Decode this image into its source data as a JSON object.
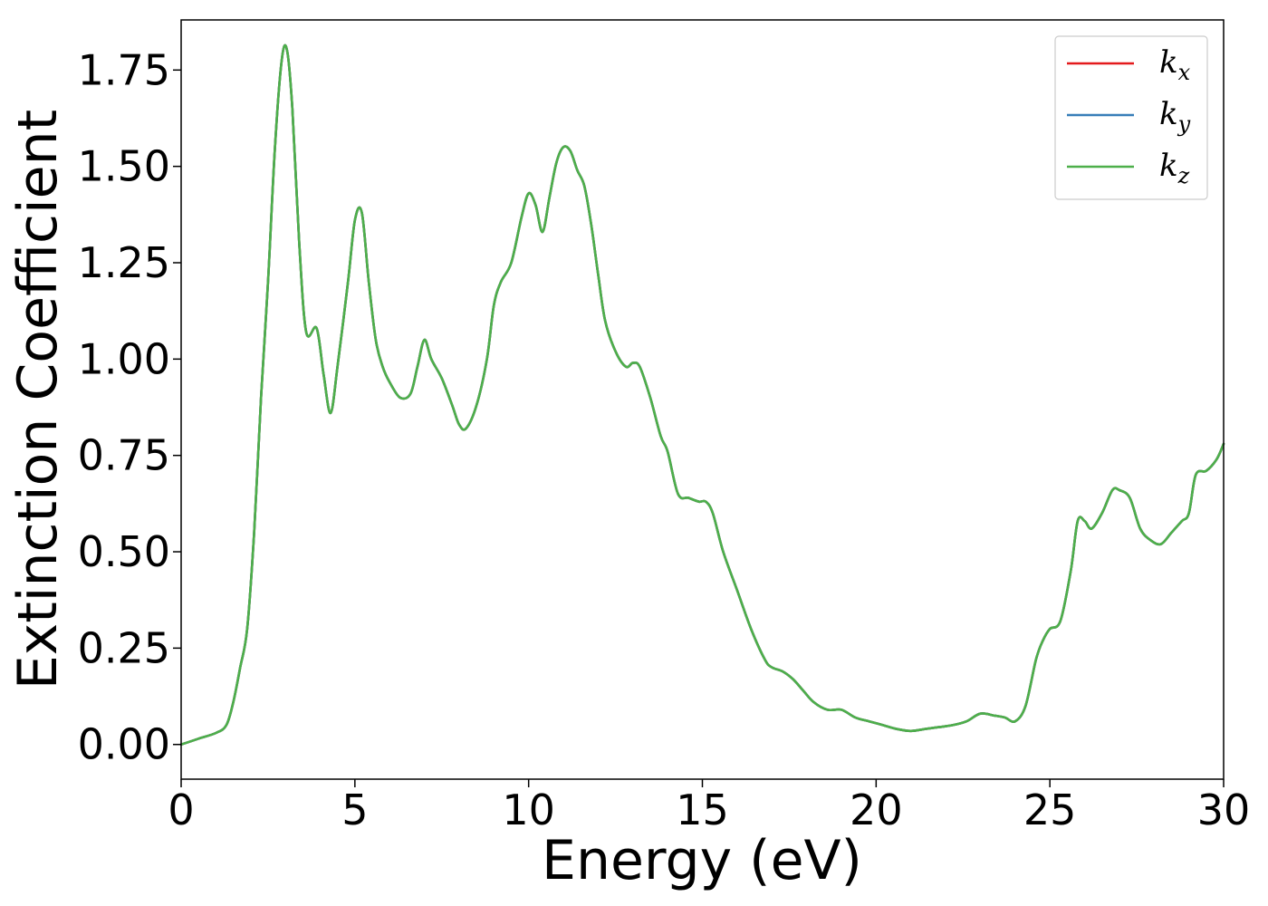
{
  "chart_data": {
    "type": "line",
    "xlabel": "Energy (eV)",
    "ylabel": "Extinction Coefficient",
    "xlim": [
      0,
      30
    ],
    "ylim": [
      -0.09,
      1.88
    ],
    "xticks": [
      0,
      5,
      10,
      15,
      20,
      25,
      30
    ],
    "xtick_labels": [
      "0",
      "5",
      "10",
      "15",
      "20",
      "25",
      "30"
    ],
    "yticks": [
      0,
      0.25,
      0.5,
      0.75,
      1.0,
      1.25,
      1.5,
      1.75
    ],
    "ytick_labels": [
      "0.00",
      "0.25",
      "0.50",
      "0.75",
      "1.00",
      "1.25",
      "1.50",
      "1.75"
    ],
    "grid": false,
    "legend_position": "top-right",
    "x": [
      0,
      0.5,
      1.0,
      1.3,
      1.5,
      1.7,
      1.9,
      2.1,
      2.3,
      2.5,
      2.7,
      2.9,
      3.05,
      3.2,
      3.4,
      3.6,
      3.9,
      4.1,
      4.3,
      4.5,
      4.8,
      5.0,
      5.2,
      5.4,
      5.6,
      5.8,
      6.0,
      6.3,
      6.6,
      6.8,
      7.0,
      7.2,
      7.5,
      7.8,
      8.0,
      8.2,
      8.5,
      8.8,
      9.0,
      9.2,
      9.5,
      9.8,
      10.0,
      10.2,
      10.4,
      10.6,
      10.8,
      11.0,
      11.2,
      11.4,
      11.6,
      11.8,
      12.0,
      12.2,
      12.5,
      12.8,
      13.0,
      13.2,
      13.5,
      13.8,
      14.0,
      14.3,
      14.6,
      14.9,
      15.1,
      15.3,
      15.6,
      16.0,
      16.4,
      16.8,
      17.0,
      17.3,
      17.6,
      17.9,
      18.2,
      18.6,
      19.0,
      19.4,
      19.8,
      20.2,
      20.6,
      21.0,
      21.4,
      21.8,
      22.2,
      22.6,
      23.0,
      23.4,
      23.7,
      24.0,
      24.3,
      24.6,
      24.8,
      25.0,
      25.3,
      25.6,
      25.8,
      26.0,
      26.2,
      26.5,
      26.8,
      27.0,
      27.3,
      27.6,
      27.9,
      28.2,
      28.5,
      28.8,
      29.0,
      29.2,
      29.5,
      29.8,
      30.0
    ],
    "series": [
      {
        "name": "k_x",
        "label_main": "k",
        "label_sub": "x",
        "color": "#e41a1c",
        "values": [
          0.0,
          0.015,
          0.03,
          0.05,
          0.11,
          0.2,
          0.3,
          0.55,
          0.9,
          1.2,
          1.55,
          1.78,
          1.8,
          1.65,
          1.3,
          1.07,
          1.08,
          0.96,
          0.86,
          0.98,
          1.2,
          1.36,
          1.38,
          1.2,
          1.05,
          0.98,
          0.94,
          0.9,
          0.91,
          0.98,
          1.05,
          1.0,
          0.95,
          0.88,
          0.83,
          0.82,
          0.88,
          1.0,
          1.14,
          1.2,
          1.25,
          1.37,
          1.43,
          1.4,
          1.33,
          1.42,
          1.51,
          1.55,
          1.54,
          1.49,
          1.45,
          1.35,
          1.22,
          1.1,
          1.02,
          0.98,
          0.99,
          0.98,
          0.9,
          0.8,
          0.76,
          0.65,
          0.64,
          0.63,
          0.63,
          0.6,
          0.5,
          0.4,
          0.3,
          0.22,
          0.2,
          0.19,
          0.17,
          0.14,
          0.11,
          0.09,
          0.09,
          0.07,
          0.06,
          0.05,
          0.04,
          0.035,
          0.04,
          0.045,
          0.05,
          0.06,
          0.08,
          0.075,
          0.07,
          0.06,
          0.1,
          0.22,
          0.27,
          0.3,
          0.32,
          0.45,
          0.58,
          0.58,
          0.56,
          0.6,
          0.66,
          0.66,
          0.64,
          0.56,
          0.53,
          0.52,
          0.55,
          0.58,
          0.6,
          0.7,
          0.71,
          0.74,
          0.78
        ]
      },
      {
        "name": "k_y",
        "label_main": "k",
        "label_sub": "y",
        "color": "#377eb8",
        "values": [
          0.0,
          0.015,
          0.03,
          0.05,
          0.11,
          0.2,
          0.3,
          0.55,
          0.9,
          1.2,
          1.55,
          1.78,
          1.8,
          1.65,
          1.3,
          1.07,
          1.08,
          0.96,
          0.86,
          0.98,
          1.2,
          1.36,
          1.38,
          1.2,
          1.05,
          0.98,
          0.94,
          0.9,
          0.91,
          0.98,
          1.05,
          1.0,
          0.95,
          0.88,
          0.83,
          0.82,
          0.88,
          1.0,
          1.14,
          1.2,
          1.25,
          1.37,
          1.43,
          1.4,
          1.33,
          1.42,
          1.51,
          1.55,
          1.54,
          1.49,
          1.45,
          1.35,
          1.22,
          1.1,
          1.02,
          0.98,
          0.99,
          0.98,
          0.9,
          0.8,
          0.76,
          0.65,
          0.64,
          0.63,
          0.63,
          0.6,
          0.5,
          0.4,
          0.3,
          0.22,
          0.2,
          0.19,
          0.17,
          0.14,
          0.11,
          0.09,
          0.09,
          0.07,
          0.06,
          0.05,
          0.04,
          0.035,
          0.04,
          0.045,
          0.05,
          0.06,
          0.08,
          0.075,
          0.07,
          0.06,
          0.1,
          0.22,
          0.27,
          0.3,
          0.32,
          0.45,
          0.58,
          0.58,
          0.56,
          0.6,
          0.66,
          0.66,
          0.64,
          0.56,
          0.53,
          0.52,
          0.55,
          0.58,
          0.6,
          0.7,
          0.71,
          0.74,
          0.78
        ]
      },
      {
        "name": "k_z",
        "label_main": "k",
        "label_sub": "z",
        "color": "#4daf4a",
        "values": [
          0.0,
          0.015,
          0.03,
          0.05,
          0.11,
          0.2,
          0.3,
          0.55,
          0.9,
          1.2,
          1.55,
          1.78,
          1.8,
          1.65,
          1.3,
          1.07,
          1.08,
          0.96,
          0.86,
          0.98,
          1.2,
          1.36,
          1.38,
          1.2,
          1.05,
          0.98,
          0.94,
          0.9,
          0.91,
          0.98,
          1.05,
          1.0,
          0.95,
          0.88,
          0.83,
          0.82,
          0.88,
          1.0,
          1.14,
          1.2,
          1.25,
          1.37,
          1.43,
          1.4,
          1.33,
          1.42,
          1.51,
          1.55,
          1.54,
          1.49,
          1.45,
          1.35,
          1.22,
          1.1,
          1.02,
          0.98,
          0.99,
          0.98,
          0.9,
          0.8,
          0.76,
          0.65,
          0.64,
          0.63,
          0.63,
          0.6,
          0.5,
          0.4,
          0.3,
          0.22,
          0.2,
          0.19,
          0.17,
          0.14,
          0.11,
          0.09,
          0.09,
          0.07,
          0.06,
          0.05,
          0.04,
          0.035,
          0.04,
          0.045,
          0.05,
          0.06,
          0.08,
          0.075,
          0.07,
          0.06,
          0.1,
          0.22,
          0.27,
          0.3,
          0.32,
          0.45,
          0.58,
          0.58,
          0.56,
          0.6,
          0.66,
          0.66,
          0.64,
          0.56,
          0.53,
          0.52,
          0.55,
          0.58,
          0.6,
          0.7,
          0.71,
          0.74,
          0.78
        ]
      }
    ]
  }
}
